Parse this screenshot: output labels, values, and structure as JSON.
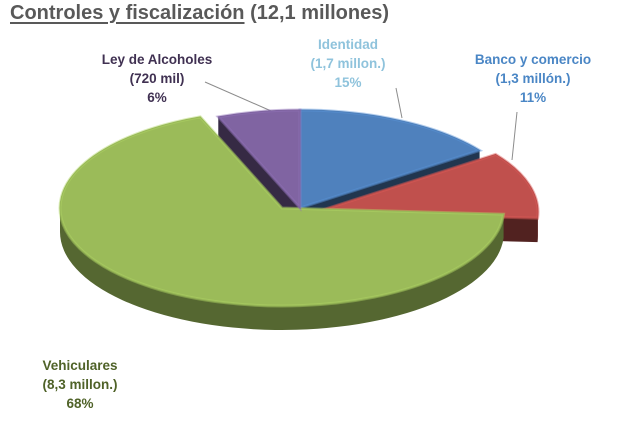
{
  "chart_data": {
    "type": "pie",
    "title": "Controles y fiscalización",
    "subtitle": "(12,1 millones)",
    "slices": [
      {
        "key": "identidad",
        "name": "Identidad",
        "amount": "(1,7 millon.)",
        "percent_label": "15%",
        "value": 15,
        "color": "#4f81bd"
      },
      {
        "key": "banco",
        "name": "Banco y comercio",
        "amount": "(1,3 millón.)",
        "percent_label": "11%",
        "value": 11,
        "color": "#c0504d"
      },
      {
        "key": "vehiculares",
        "name": "Vehiculares",
        "amount": "(8,3 millon.)",
        "percent_label": "68%",
        "value": 68,
        "color": "#9bbb59"
      },
      {
        "key": "alcoholes",
        "name": "Ley de Alcoholes",
        "amount": "(720 mil)",
        "percent_label": "6%",
        "value": 6,
        "color": "#8064a2"
      }
    ],
    "label_colors": {
      "identidad": "#8fc3dc",
      "banco": "#4a86c5",
      "vehiculares": "#4f6228",
      "alcoholes": "#403152"
    }
  }
}
